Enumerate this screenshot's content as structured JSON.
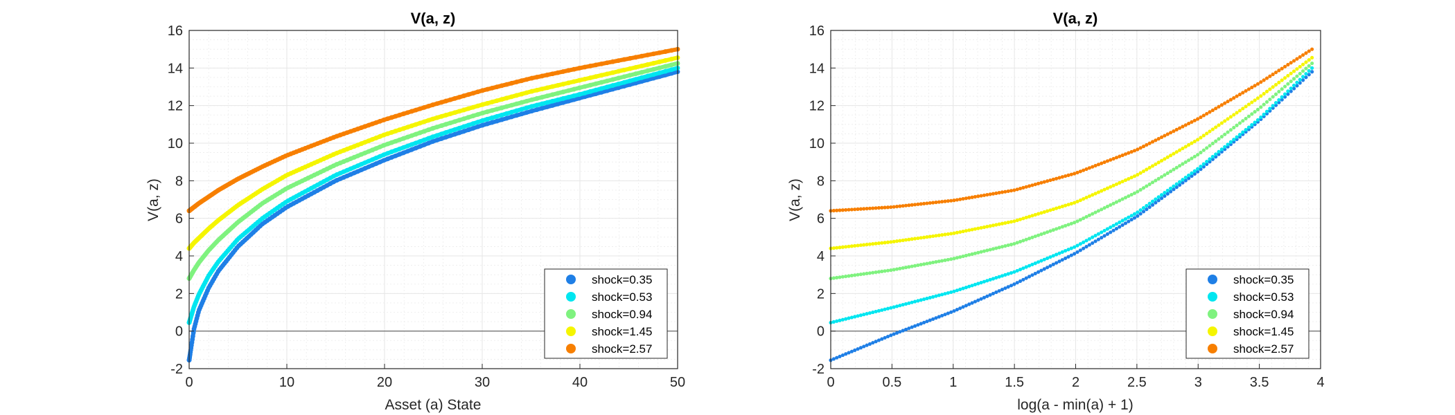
{
  "colors": {
    "shock_0_35": "#1f7fe6",
    "shock_0_53": "#00e6f0",
    "shock_0_94": "#7ff27f",
    "shock_1_45": "#f5f500",
    "shock_2_57": "#f77f00",
    "grid": "#e6e6e6",
    "axis": "#262626",
    "zero_line": "#5a5a5a"
  },
  "chart_data": [
    {
      "type": "line",
      "title": "V(a, z)",
      "xlabel": "Asset (a) State",
      "ylabel": "V(a, z)",
      "xlim": [
        0,
        50
      ],
      "ylim": [
        -2,
        16
      ],
      "xticks": [
        "0",
        "10",
        "20",
        "30",
        "40",
        "50"
      ],
      "yticks": [
        "-2",
        "0",
        "2",
        "4",
        "6",
        "8",
        "10",
        "12",
        "14",
        "16"
      ],
      "grid": true,
      "minor_grid": true,
      "zero_line": true,
      "legend_position": "bottom-right",
      "x_axis_scale": "linear",
      "series": [
        {
          "name": "shock=0.35",
          "color_key": "shock_0_35",
          "x": [
            0,
            0.5,
            1,
            2,
            3,
            5,
            7.5,
            10,
            15,
            20,
            25,
            30,
            35,
            40,
            45,
            50
          ],
          "y": [
            -1.55,
            0.12,
            1.1,
            2.3,
            3.2,
            4.5,
            5.7,
            6.6,
            8.0,
            9.1,
            10.1,
            10.95,
            11.7,
            12.4,
            13.1,
            13.8
          ]
        },
        {
          "name": "shock=0.53",
          "color_key": "shock_0_53",
          "x": [
            0,
            0.5,
            1,
            2,
            3,
            5,
            7.5,
            10,
            15,
            20,
            25,
            30,
            35,
            40,
            45,
            50
          ],
          "y": [
            0.45,
            1.3,
            1.95,
            2.95,
            3.7,
            4.9,
            6.0,
            6.9,
            8.3,
            9.4,
            10.35,
            11.2,
            11.95,
            12.6,
            13.3,
            14.0
          ]
        },
        {
          "name": "shock=0.94",
          "color_key": "shock_0_94",
          "x": [
            0,
            0.5,
            1,
            2,
            3,
            5,
            7.5,
            10,
            15,
            20,
            25,
            30,
            35,
            40,
            45,
            50
          ],
          "y": [
            2.8,
            3.25,
            3.65,
            4.3,
            4.85,
            5.8,
            6.8,
            7.6,
            8.85,
            9.9,
            10.8,
            11.6,
            12.3,
            12.95,
            13.6,
            14.25
          ]
        },
        {
          "name": "shock=1.45",
          "color_key": "shock_1_45",
          "x": [
            0,
            0.5,
            1,
            2,
            3,
            5,
            7.5,
            10,
            15,
            20,
            25,
            30,
            35,
            40,
            45,
            50
          ],
          "y": [
            4.4,
            4.7,
            4.95,
            5.45,
            5.9,
            6.7,
            7.55,
            8.3,
            9.45,
            10.45,
            11.3,
            12.05,
            12.75,
            13.35,
            13.95,
            14.55
          ]
        },
        {
          "name": "shock=2.57",
          "color_key": "shock_2_57",
          "x": [
            0,
            0.5,
            1,
            2,
            3,
            5,
            7.5,
            10,
            15,
            20,
            25,
            30,
            35,
            40,
            45,
            50
          ],
          "y": [
            6.4,
            6.6,
            6.8,
            7.15,
            7.5,
            8.1,
            8.75,
            9.35,
            10.35,
            11.25,
            12.05,
            12.8,
            13.45,
            14.0,
            14.5,
            15.0
          ]
        }
      ]
    },
    {
      "type": "scatter",
      "title": "V(a, z)",
      "xlabel": "log(a - min(a) + 1)",
      "ylabel": "V(a, z)",
      "xlim": [
        0,
        4
      ],
      "ylim": [
        -2,
        16
      ],
      "xticks": [
        "0",
        "0.5",
        "1",
        "1.5",
        "2",
        "2.5",
        "3",
        "3.5",
        "4"
      ],
      "yticks": [
        "-2",
        "0",
        "2",
        "4",
        "6",
        "8",
        "10",
        "12",
        "14",
        "16"
      ],
      "grid": true,
      "minor_grid": true,
      "zero_line": true,
      "legend_position": "bottom-right",
      "x_axis_scale": "linear",
      "series": [
        {
          "name": "shock=0.35",
          "color_key": "shock_0_35",
          "x": [
            0,
            0.5,
            1,
            1.5,
            2,
            2.5,
            3,
            3.5,
            3.93
          ],
          "y": [
            -1.55,
            -0.2,
            1.05,
            2.5,
            4.15,
            6.1,
            8.5,
            11.2,
            13.8
          ]
        },
        {
          "name": "shock=0.53",
          "color_key": "shock_0_53",
          "x": [
            0,
            0.5,
            1,
            1.5,
            2,
            2.5,
            3,
            3.5,
            3.93
          ],
          "y": [
            0.45,
            1.25,
            2.1,
            3.15,
            4.5,
            6.3,
            8.65,
            11.3,
            14.0
          ]
        },
        {
          "name": "shock=0.94",
          "color_key": "shock_0_94",
          "x": [
            0,
            0.5,
            1,
            1.5,
            2,
            2.5,
            3,
            3.5,
            3.93
          ],
          "y": [
            2.8,
            3.25,
            3.85,
            4.65,
            5.8,
            7.4,
            9.4,
            11.85,
            14.25
          ]
        },
        {
          "name": "shock=1.45",
          "color_key": "shock_1_45",
          "x": [
            0,
            0.5,
            1,
            1.5,
            2,
            2.5,
            3,
            3.5,
            3.93
          ],
          "y": [
            4.4,
            4.75,
            5.2,
            5.85,
            6.85,
            8.3,
            10.2,
            12.45,
            14.55
          ]
        },
        {
          "name": "shock=2.57",
          "color_key": "shock_2_57",
          "x": [
            0,
            0.5,
            1,
            1.5,
            2,
            2.5,
            3,
            3.5,
            3.93
          ],
          "y": [
            6.4,
            6.6,
            6.95,
            7.5,
            8.4,
            9.65,
            11.3,
            13.2,
            15.0
          ]
        }
      ]
    }
  ]
}
